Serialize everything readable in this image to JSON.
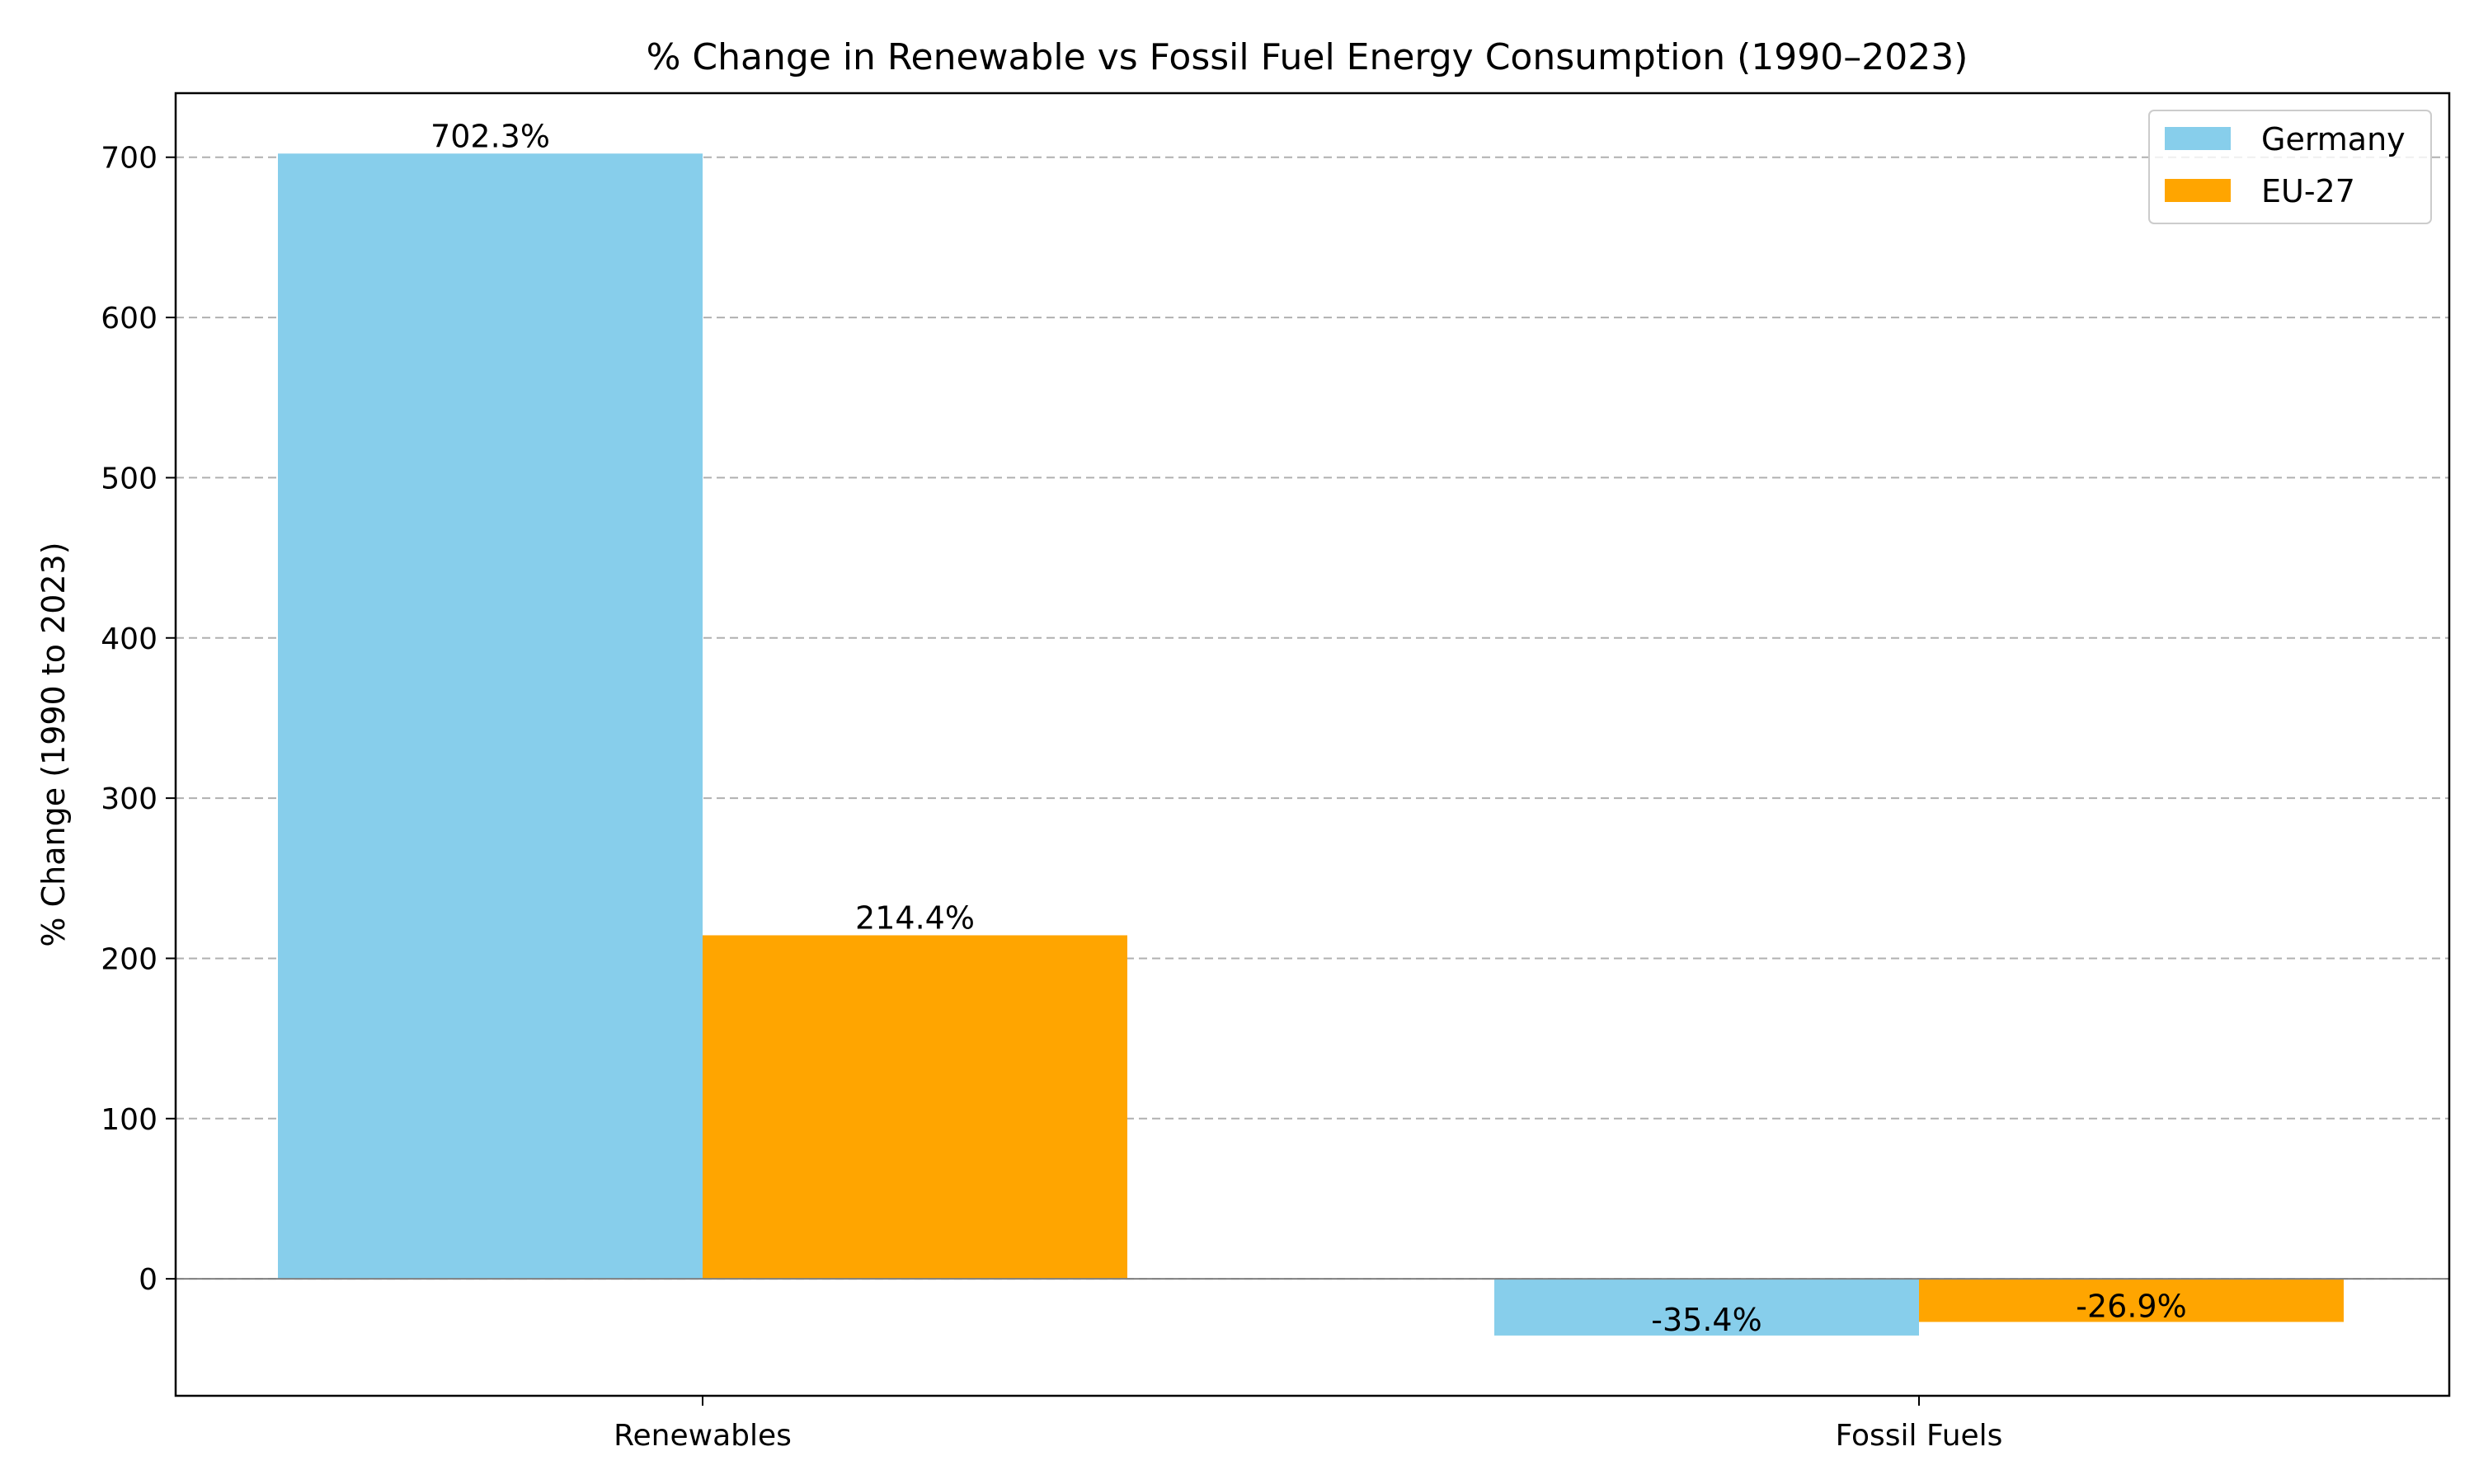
{
  "chart_data": {
    "type": "bar",
    "title": "% Change in Renewable vs Fossil Fuel Energy Consumption (1990–2023)",
    "xlabel": "",
    "ylabel": "% Change (1990 to 2023)",
    "categories": [
      "Renewables",
      "Fossil Fuels"
    ],
    "series": [
      {
        "name": "Germany",
        "values": [
          702.3,
          -35.4
        ],
        "labels": [
          "702.3%",
          "-35.4%"
        ],
        "color": "#87CEEB"
      },
      {
        "name": "EU-27",
        "values": [
          214.4,
          -26.9
        ],
        "labels": [
          "214.4%",
          "-26.9%"
        ],
        "color": "#FFA500"
      }
    ],
    "ylim": [
      -73,
      740
    ],
    "yticks": [
      0,
      100,
      200,
      300,
      400,
      500,
      600,
      700
    ],
    "grid": "y-dashed",
    "legend_position": "top-right"
  }
}
